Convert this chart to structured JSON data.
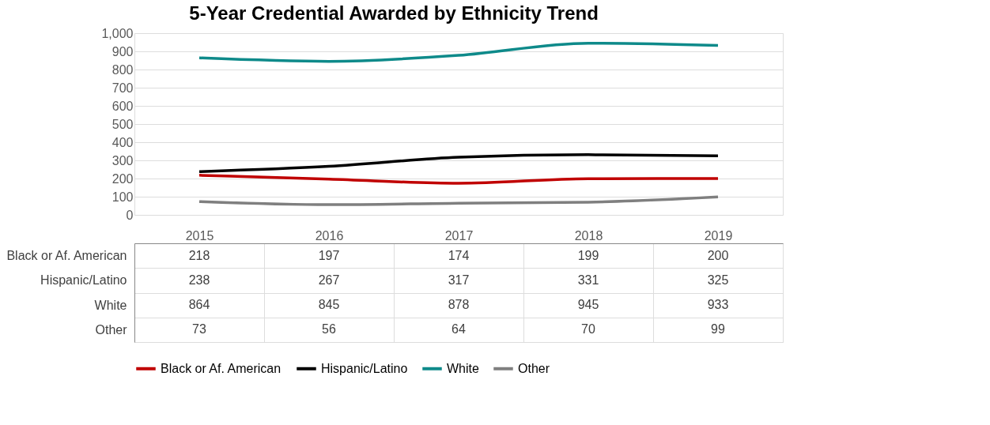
{
  "chart_data": {
    "type": "line",
    "title": "5-Year Credential Awarded by Ethnicity Trend",
    "categories": [
      "2015",
      "2016",
      "2017",
      "2018",
      "2019"
    ],
    "series": [
      {
        "name": "Black or Af. American",
        "color": "#c00000",
        "values": [
          218,
          197,
          174,
          199,
          200
        ]
      },
      {
        "name": "Hispanic/Latino",
        "color": "#000000",
        "values": [
          238,
          267,
          317,
          331,
          325
        ]
      },
      {
        "name": "White",
        "color": "#0e8a8a",
        "values": [
          864,
          845,
          878,
          945,
          933
        ]
      },
      {
        "name": "Other",
        "color": "#7f7f7f",
        "values": [
          73,
          56,
          64,
          70,
          99
        ]
      }
    ],
    "ylim": [
      0,
      1000
    ],
    "yticks": [
      0,
      100,
      200,
      300,
      400,
      500,
      600,
      700,
      800,
      900,
      {
        "value": 1000,
        "label": "1,000"
      }
    ],
    "grid": "y",
    "legend": "bottom",
    "data_labels": true
  }
}
